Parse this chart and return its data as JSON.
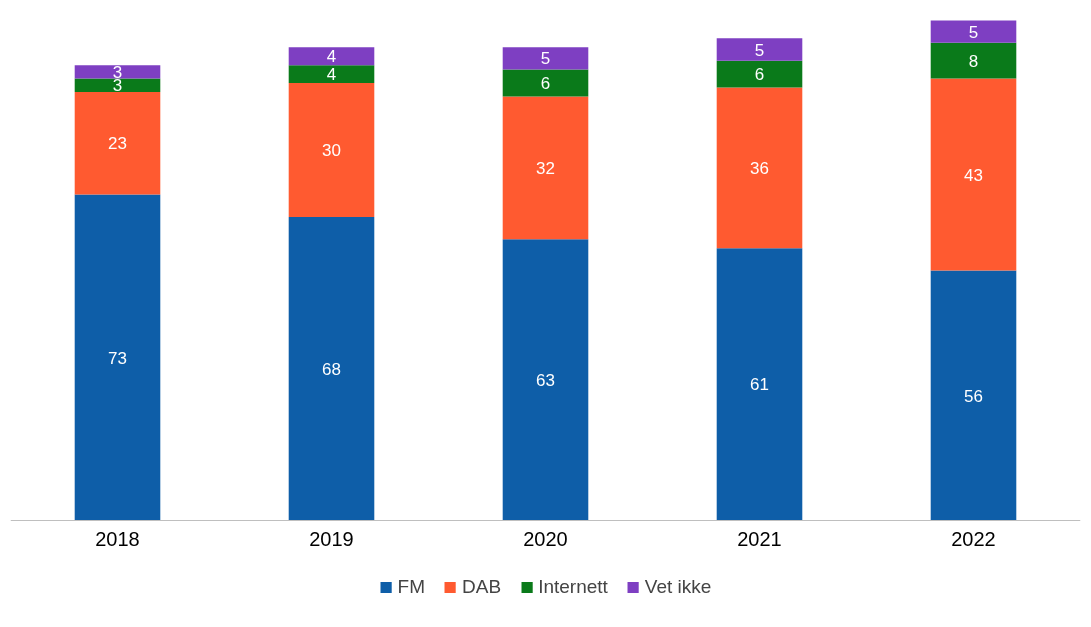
{
  "chart_data": {
    "type": "bar",
    "stacked": true,
    "data_labels": true,
    "legend": "bottom",
    "grid": false,
    "categories": [
      "2018",
      "2019",
      "2020",
      "2021",
      "2022"
    ],
    "series": [
      {
        "name": "FM",
        "color": "#0e5ea8",
        "values": [
          73,
          68,
          63,
          61,
          56
        ]
      },
      {
        "name": "DAB",
        "color": "#ff5a30",
        "values": [
          23,
          30,
          32,
          36,
          43
        ]
      },
      {
        "name": "Internett",
        "color": "#0a7a1a",
        "values": [
          3,
          4,
          6,
          6,
          8
        ]
      },
      {
        "name": "Vet ikke",
        "color": "#7e3fc2",
        "values": [
          3,
          4,
          5,
          5,
          5
        ]
      }
    ]
  }
}
